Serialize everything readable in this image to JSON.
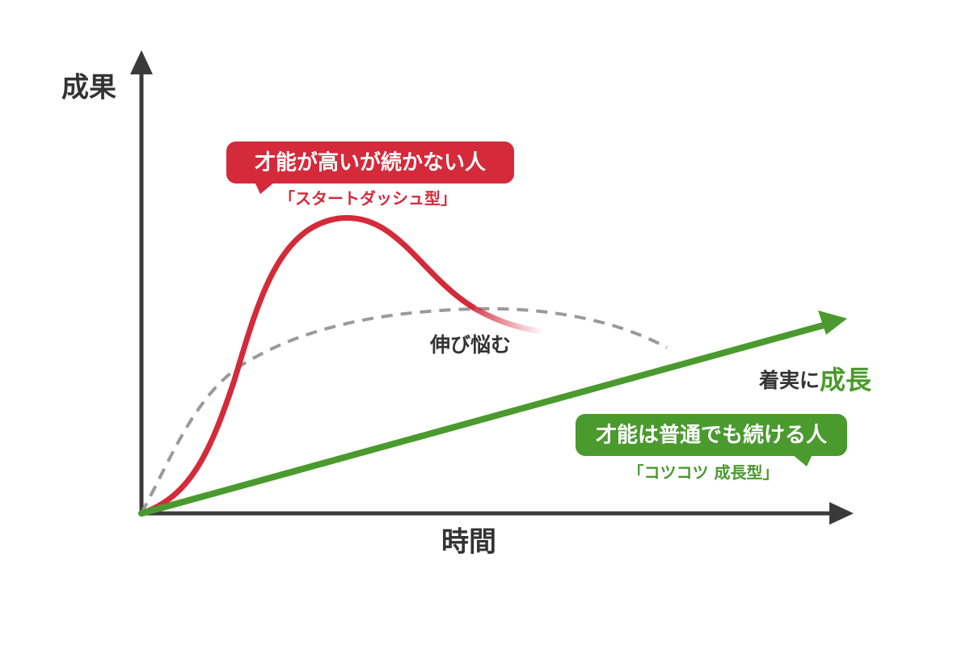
{
  "axes": {
    "y_label": "成果",
    "x_label": "時間"
  },
  "callouts": [
    {
      "title": "才能が高いが続かない人",
      "subtitle": "「スタートダッシュ型」"
    },
    {
      "title": "才能は普通でも続ける人",
      "subtitle": "「コツコツ 成長型」"
    }
  ],
  "annotations": {
    "plateau": "伸び悩む",
    "steady_prefix": "着実に",
    "steady_emphasis": "成長"
  }
}
